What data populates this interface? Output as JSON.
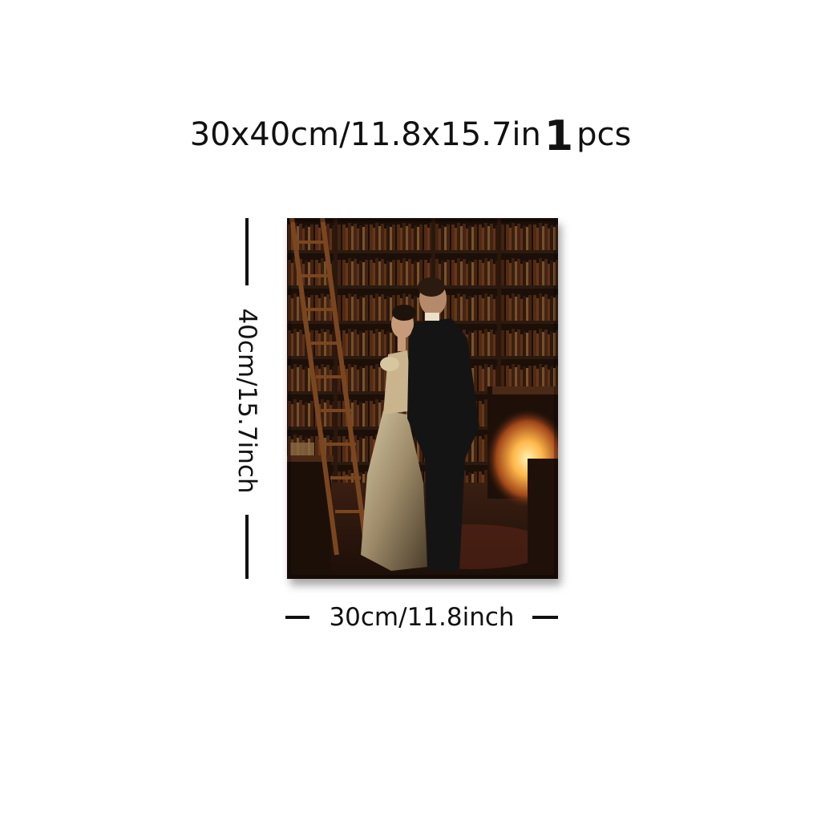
{
  "product": {
    "size_text": "30x40cm/11.8x15.7in",
    "quantity_number": "1",
    "quantity_unit": "pcs"
  },
  "dimensions": {
    "height_label": "40cm/15.7inch",
    "width_label": "30cm/11.8inch"
  },
  "artwork": {
    "subject": "couple-in-library-painting",
    "colors": {
      "background": "#2a1a10",
      "shelf": "#3b2314",
      "book_warm": "#8a4a22",
      "fire": "#ffb84a",
      "dress": "#b9a684",
      "suit": "#151414"
    }
  }
}
